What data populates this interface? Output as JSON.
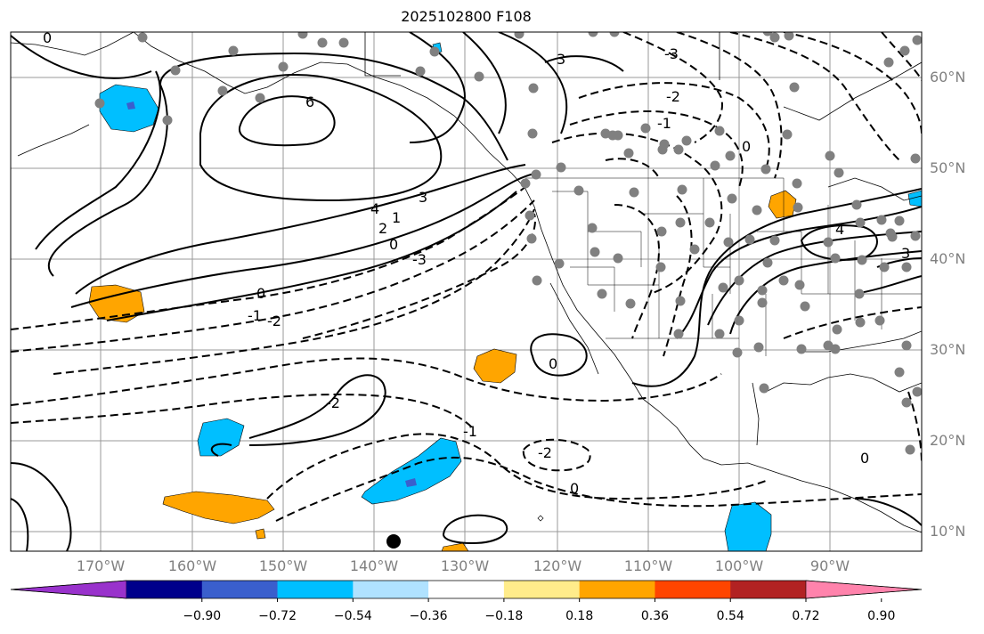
{
  "title": "2025102800 F108",
  "latitude_labels": [
    "60°N",
    "50°N",
    "40°N",
    "30°N",
    "20°N",
    "10°N"
  ],
  "longitude_labels": [
    "170°W",
    "160°W",
    "150°W",
    "140°W",
    "130°W",
    "120°W",
    "110°W",
    "100°W",
    "90°W"
  ],
  "contour_labels": [
    "0",
    "6",
    "4",
    "3",
    "2",
    "1",
    "0",
    "-1",
    "-2",
    "-3",
    "0",
    "-1",
    "-2",
    "0",
    "0",
    "-2",
    "4",
    "3",
    "0",
    "3",
    "-3",
    "-1",
    "-2",
    "0"
  ],
  "colorbar": {
    "labels": [
      "−0.90",
      "−0.72",
      "−0.54",
      "−0.36",
      "−0.18",
      "0.18",
      "0.36",
      "0.54",
      "0.72",
      "0.90"
    ],
    "colors": [
      "#9932cc",
      "#00008b",
      "#3a5fcd",
      "#00bfff",
      "#b0e2ff",
      "#ffffff",
      "#ffec8b",
      "#ffa500",
      "#ff4500",
      "#b22222",
      "#ff83ac"
    ]
  },
  "colors": {
    "grid": "#999999",
    "coast": "#000000",
    "station_dot": "#808080",
    "positive_anomaly": "#ffa500",
    "negative_anomaly": "#00bfff"
  }
}
